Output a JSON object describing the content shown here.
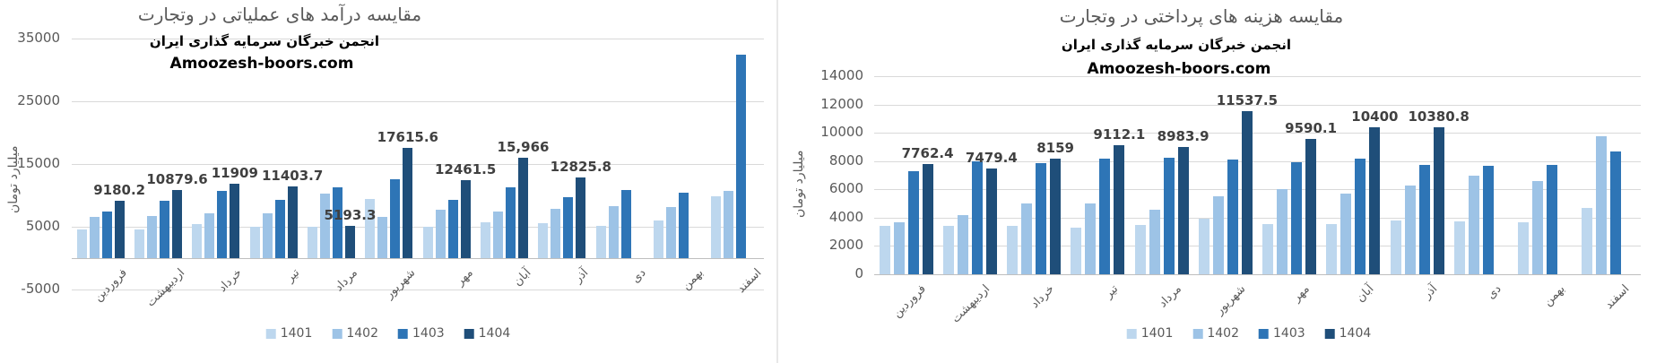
{
  "legend_years": [
    "1401",
    "1402",
    "1403",
    "1404"
  ],
  "series_colors": [
    "#BDD7EE",
    "#9DC3E6",
    "#2E75B6",
    "#1F4E79"
  ],
  "chart_data": [
    {
      "type": "bar",
      "title": "مقایسه درآمد های عملیاتی در وتجارت",
      "subtitle": "انجمن خبرگان سرمایه گذاری ایران",
      "annotation": "Amoozesh-boors.com",
      "ylabel": "میلیارد تومان",
      "xlabel": "",
      "ylim": [
        -5000,
        35000
      ],
      "yticks": [
        35000,
        25000,
        15000,
        5000,
        -5000
      ],
      "grid": true,
      "legend_position": "bottom",
      "categories": [
        "فروردین",
        "اردیبهشت",
        "خرداد",
        "تیر",
        "مرداد",
        "شهریور",
        "مهر",
        "آبان",
        "آذر",
        "دی",
        "بهمن",
        "اسفند"
      ],
      "series": [
        {
          "name": "1401",
          "color": "#BDD7EE",
          "values": [
            4600,
            4600,
            5400,
            5000,
            5000,
            9400,
            5000,
            5700,
            5600,
            5200,
            6000,
            9900
          ]
        },
        {
          "name": "1402",
          "color": "#9DC3E6",
          "values": [
            6600,
            6700,
            7200,
            7100,
            10300,
            6600,
            7700,
            7400,
            7900,
            8300,
            8200,
            10700
          ]
        },
        {
          "name": "1403",
          "color": "#2E75B6",
          "values": [
            7400,
            9200,
            10700,
            9250,
            11250,
            12600,
            9300,
            11300,
            9700,
            10800,
            10400,
            32400
          ]
        },
        {
          "name": "1404",
          "color": "#1F4E79",
          "values": [
            9180.2,
            10879.6,
            11909,
            11403.7,
            5193.3,
            17615.6,
            12461.5,
            15966,
            12825.8,
            null,
            null,
            null
          ]
        }
      ],
      "data_labels": [
        "9180.2",
        "10879.6",
        "11909",
        "11403.7",
        "5193.3",
        "17615.6",
        "12461.5",
        "15,966",
        "12825.8",
        null,
        null,
        null
      ]
    },
    {
      "type": "bar",
      "title": "مقایسه هزینه های پرداختی در وتجارت",
      "subtitle": "انجمن خبرگان سرمایه گذاری ایران",
      "annotation": "Amoozesh-boors.com",
      "ylabel": "میلیارد تومان",
      "xlabel": "",
      "ylim": [
        0,
        14000
      ],
      "yticks": [
        14000,
        12000,
        10000,
        8000,
        6000,
        4000,
        2000,
        0
      ],
      "grid": true,
      "legend_position": "bottom",
      "categories": [
        "فروردین",
        "اردیبهشت",
        "خرداد",
        "تیر",
        "مرداد",
        "شهریور",
        "مهر",
        "آبان",
        "آذر",
        "دی",
        "بهمن",
        "اسفند"
      ],
      "series": [
        {
          "name": "1401",
          "color": "#BDD7EE",
          "values": [
            3400,
            3450,
            3400,
            3300,
            3500,
            3900,
            3550,
            3550,
            3800,
            3750,
            3650,
            4700
          ]
        },
        {
          "name": "1402",
          "color": "#9DC3E6",
          "values": [
            3700,
            4150,
            5000,
            5000,
            4550,
            5500,
            6000,
            5700,
            6300,
            7000,
            6600,
            9750
          ]
        },
        {
          "name": "1403",
          "color": "#2E75B6",
          "values": [
            7300,
            8000,
            7850,
            8200,
            8250,
            8100,
            7900,
            8150,
            7750,
            7650,
            7750,
            8650
          ]
        },
        {
          "name": "1404",
          "color": "#1F4E79",
          "values": [
            7762.4,
            7479.4,
            8159,
            9112.1,
            8983.9,
            11537.5,
            9590.1,
            10400,
            10380.8,
            null,
            null,
            null
          ]
        }
      ],
      "data_labels": [
        "7762.4",
        "7479.4",
        "8159",
        "9112.1",
        "8983.9",
        "11537.5",
        "9590.1",
        "10400",
        "10380.8",
        null,
        null,
        null
      ]
    }
  ]
}
